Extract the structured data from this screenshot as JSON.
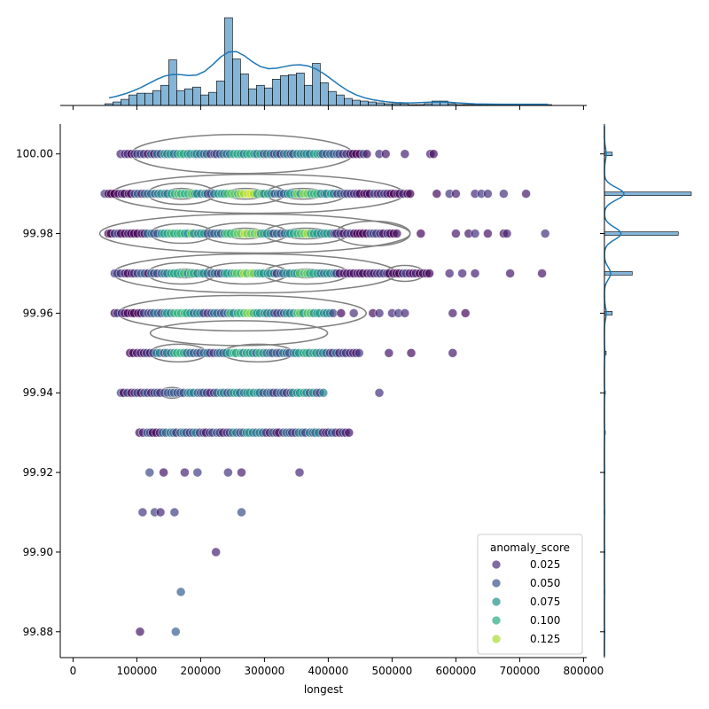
{
  "chart_data": {
    "type": "scatter",
    "subtype": "jointplot",
    "xlabel": "longest",
    "ylabel": "",
    "xlim": [
      -20000,
      805000
    ],
    "ylim": [
      99.8735,
      100.0075
    ],
    "x_ticks": [
      0,
      100000,
      200000,
      300000,
      400000,
      500000,
      600000,
      700000,
      800000
    ],
    "x_tick_labels": [
      "0",
      "100000",
      "200000",
      "300000",
      "400000",
      "500000",
      "600000",
      "700000",
      "800000"
    ],
    "y_ticks": [
      99.88,
      99.9,
      99.92,
      99.94,
      99.96,
      99.98,
      100.0
    ],
    "y_tick_labels": [
      "99.88",
      "99.90",
      "99.92",
      "99.94",
      "99.96",
      "99.98",
      "100.00"
    ],
    "grid": false,
    "hue": "anomaly_score",
    "legend": {
      "title": "anomaly_score",
      "position": "lower-right",
      "entries": [
        {
          "label": "0.025",
          "color": "#472d7b"
        },
        {
          "label": "0.050",
          "color": "#3b528b"
        },
        {
          "label": "0.075",
          "color": "#21918c"
        },
        {
          "label": "0.100",
          "color": "#27ad81"
        },
        {
          "label": "0.125",
          "color": "#aadc32"
        }
      ]
    },
    "colormap": "viridis",
    "point_alpha": 0.7,
    "contour_color": "#808080",
    "kde_color": "#1f77b4",
    "hist_color": "#1f77b4",
    "rows": [
      {
        "y": 100.0,
        "xmin": 75000,
        "xmax": 460000,
        "outliers": [
          480000,
          490000,
          520000,
          560000,
          565000
        ]
      },
      {
        "y": 99.99,
        "xmin": 50000,
        "xmax": 530000,
        "outliers": [
          570000,
          590000,
          600000,
          630000,
          640000,
          650000,
          675000,
          710000
        ]
      },
      {
        "y": 99.98,
        "xmin": 55000,
        "xmax": 510000,
        "outliers": [
          545000,
          600000,
          620000,
          630000,
          650000,
          675000,
          680000,
          740000
        ]
      },
      {
        "y": 99.97,
        "xmin": 65000,
        "xmax": 560000,
        "outliers": [
          590000,
          610000,
          630000,
          685000,
          735000
        ]
      },
      {
        "y": 99.96,
        "xmin": 65000,
        "xmax": 410000,
        "outliers": [
          420000,
          440000,
          470000,
          480000,
          500000,
          510000,
          520000,
          595000,
          615000
        ]
      },
      {
        "y": 99.95,
        "xmin": 90000,
        "xmax": 450000,
        "outliers": [
          495000,
          530000,
          595000
        ]
      },
      {
        "y": 99.94,
        "xmin": 75000,
        "xmax": 395000,
        "outliers": [
          480000
        ]
      },
      {
        "y": 99.93,
        "xmin": 105000,
        "xmax": 435000,
        "outliers": []
      },
      {
        "y": 99.92,
        "points": [
          120000,
          142000,
          175000,
          195000,
          243000,
          264000,
          355000
        ]
      },
      {
        "y": 99.91,
        "points": [
          109000,
          128000,
          137000,
          159000,
          264000
        ]
      },
      {
        "y": 99.9,
        "points": [
          224000
        ]
      },
      {
        "y": 99.89,
        "points": [
          169000
        ]
      },
      {
        "y": 99.88,
        "points": [
          105000,
          161000
        ]
      }
    ],
    "x_marginal_histogram": {
      "bin_start": 50000,
      "bin_width": 12500,
      "counts": [
        2,
        4,
        7,
        12,
        14,
        14,
        17,
        23,
        52,
        17,
        19,
        21,
        12,
        15,
        28,
        100,
        53,
        36,
        19,
        23,
        20,
        30,
        34,
        35,
        37,
        23,
        48,
        26,
        16,
        12,
        8,
        6,
        5,
        4,
        3,
        2,
        2,
        2,
        1,
        1,
        2,
        5,
        5,
        2,
        1,
        1,
        1,
        1,
        1,
        1,
        1,
        1,
        1,
        1,
        1,
        1
      ]
    },
    "y_marginal_histogram": {
      "levels": [
        100.0,
        99.99,
        99.98,
        99.97,
        99.96,
        99.95,
        99.94,
        99.93,
        99.92,
        99.91,
        99.9,
        99.89,
        99.88
      ],
      "counts": [
        9,
        100,
        85,
        32,
        9,
        2,
        1,
        1,
        0.5,
        0.5,
        0.5,
        0.5,
        0.5
      ]
    }
  }
}
